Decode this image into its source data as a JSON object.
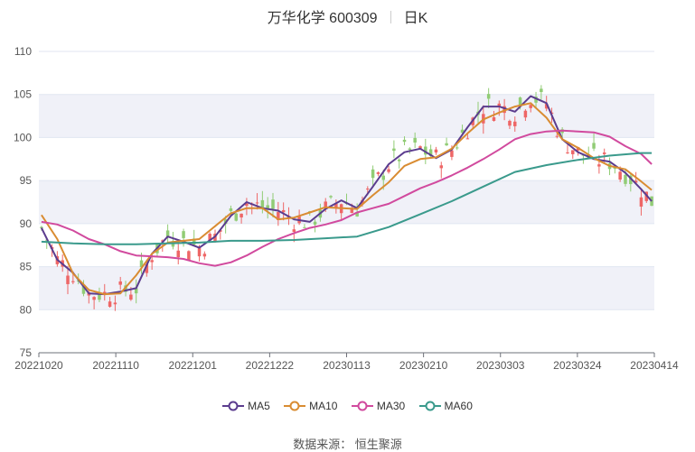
{
  "header": {
    "title": "万华化学 600309",
    "period": "日K"
  },
  "source_text": "数据来源： 恒生聚源",
  "chart_data": {
    "type": "candlestick_line",
    "ylim": [
      75,
      110
    ],
    "yticks": [
      75,
      80,
      85,
      90,
      95,
      100,
      105,
      110
    ],
    "x_tick_labels": [
      "20221020",
      "20221110",
      "20221201",
      "20221222",
      "20230113",
      "20230210",
      "20230303",
      "20230324",
      "20230414"
    ],
    "n_days": 117,
    "colors": {
      "up": "#ee6666",
      "down": "#91cc75",
      "band": "#f0f1f8",
      "grid": "#e0e6f1"
    },
    "series": [
      {
        "name": "MA5",
        "color": "#5b3c8e",
        "x": [
          0,
          3,
          6,
          9,
          12,
          15,
          18,
          21,
          24,
          27,
          30,
          33,
          36,
          39,
          42,
          45,
          48,
          51,
          54,
          57,
          60,
          63,
          66,
          69,
          72,
          75,
          78,
          81,
          84,
          87,
          90,
          93,
          96,
          99,
          102,
          105,
          108,
          111,
          114,
          116
        ],
        "y": [
          89.5,
          85.8,
          84.3,
          81.9,
          81.8,
          82.1,
          82.5,
          86.5,
          88.5,
          87.9,
          87.2,
          88.5,
          90.9,
          92.5,
          91.8,
          91.5,
          90.5,
          90.2,
          91.7,
          92.7,
          91.8,
          94.3,
          96.9,
          98.3,
          98.7,
          97.6,
          98.6,
          101.2,
          103.6,
          103.6,
          103.0,
          104.8,
          104.0,
          99.8,
          98.3,
          97.5,
          97.2,
          95.9,
          94.0,
          92.6
        ]
      },
      {
        "name": "MA10",
        "color": "#d98c32",
        "x": [
          0,
          3,
          6,
          9,
          12,
          15,
          18,
          21,
          24,
          27,
          30,
          33,
          36,
          39,
          42,
          45,
          48,
          51,
          54,
          57,
          60,
          63,
          66,
          69,
          72,
          75,
          78,
          81,
          84,
          87,
          90,
          93,
          96,
          99,
          102,
          105,
          108,
          111,
          114,
          116
        ],
        "y": [
          91.0,
          88.2,
          84.2,
          82.3,
          81.8,
          81.9,
          84.0,
          86.5,
          87.8,
          88.0,
          88.2,
          89.7,
          91.2,
          91.8,
          91.8,
          90.5,
          90.7,
          91.3,
          91.9,
          91.8,
          91.7,
          93.3,
          94.8,
          96.7,
          97.5,
          97.7,
          98.7,
          100.5,
          102.1,
          102.9,
          103.6,
          104.0,
          102.3,
          99.8,
          98.8,
          97.6,
          96.7,
          96.3,
          94.9,
          93.9
        ]
      },
      {
        "name": "MA30",
        "color": "#d14a9e",
        "x": [
          0,
          3,
          6,
          9,
          12,
          15,
          18,
          21,
          24,
          27,
          30,
          33,
          36,
          39,
          42,
          45,
          48,
          51,
          54,
          57,
          60,
          63,
          66,
          69,
          72,
          75,
          78,
          81,
          84,
          87,
          90,
          93,
          96,
          99,
          102,
          105,
          108,
          111,
          114,
          116
        ],
        "y": [
          90.2,
          89.9,
          89.2,
          88.2,
          87.6,
          86.8,
          86.3,
          86.2,
          86.1,
          85.9,
          85.4,
          85.1,
          85.5,
          86.3,
          87.3,
          88.2,
          88.9,
          89.5,
          89.9,
          90.4,
          91.3,
          91.8,
          92.3,
          93.2,
          94.1,
          94.8,
          95.6,
          96.5,
          97.5,
          98.6,
          99.8,
          100.4,
          100.7,
          100.8,
          100.7,
          100.6,
          100.1,
          99.0,
          98.1,
          96.9
        ]
      },
      {
        "name": "MA60",
        "color": "#3a9a8c",
        "x": [
          0,
          6,
          12,
          18,
          24,
          30,
          36,
          42,
          48,
          54,
          60,
          66,
          72,
          78,
          84,
          90,
          96,
          102,
          108,
          114,
          116
        ],
        "y": [
          87.9,
          87.7,
          87.6,
          87.6,
          87.7,
          87.8,
          88.0,
          88.0,
          88.1,
          88.3,
          88.5,
          89.6,
          91.1,
          92.6,
          94.3,
          96.0,
          96.8,
          97.4,
          97.9,
          98.2,
          98.2
        ]
      }
    ]
  },
  "legend": [
    {
      "label": "MA5",
      "color": "#5b3c8e"
    },
    {
      "label": "MA10",
      "color": "#d98c32"
    },
    {
      "label": "MA30",
      "color": "#d14a9e"
    },
    {
      "label": "MA60",
      "color": "#3a9a8c"
    }
  ]
}
